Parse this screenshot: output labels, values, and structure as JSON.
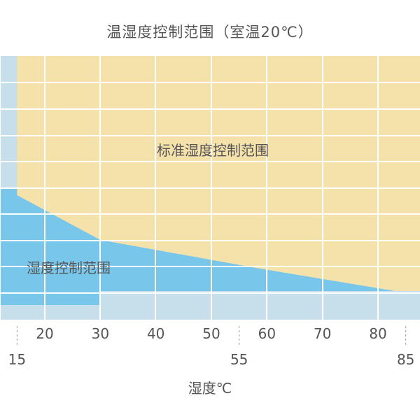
{
  "title": "温湿度控制范围（室温20℃）",
  "colors": {
    "standard": "#F5E2AB",
    "extended": "#78C6EA",
    "background": "#C7DFEA",
    "grid": "#FFFFFF",
    "text": "#555555"
  },
  "chart_data": {
    "type": "area",
    "title": "温湿度控制范围（室温20℃）",
    "xlabel": "湿度℃",
    "ylabel": "",
    "grid": true,
    "x_ticks": [
      "20",
      "30",
      "40",
      "50",
      "60",
      "70",
      "80"
    ],
    "x_ticks_minor": [
      "15",
      "55",
      "85"
    ],
    "region_labels": [
      "标准湿度控制范围",
      "湿度控制范围"
    ],
    "series": [
      {
        "name": "标准湿度控制范围",
        "boundary_x": [
          10,
          15,
          15,
          30,
          58,
          83,
          85,
          85
        ],
        "note": "upper region bounded below by the curve"
      },
      {
        "name": "湿度控制范围",
        "curve_x": [
          10,
          15,
          30,
          58,
          83,
          85
        ]
      }
    ]
  }
}
